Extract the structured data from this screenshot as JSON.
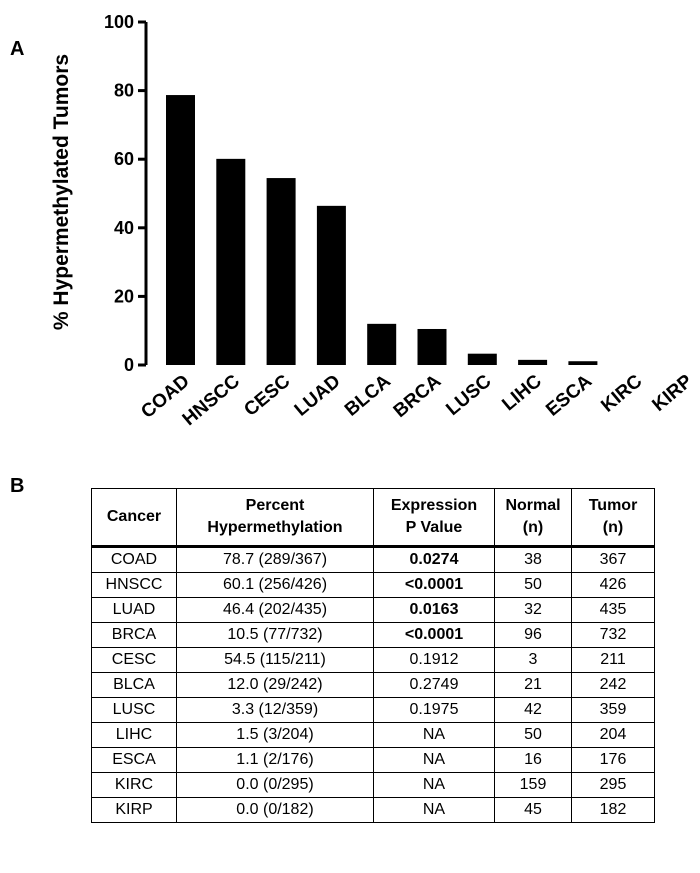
{
  "panel_a_label": "A",
  "panel_b_label": "B",
  "chart_data": {
    "type": "bar",
    "ylabel": "% Hypermethylated Tumors",
    "ylim": [
      0,
      100
    ],
    "yticks": [
      0,
      20,
      40,
      60,
      80,
      100
    ],
    "categories": [
      "COAD",
      "HNSCC",
      "CESC",
      "LUAD",
      "BLCA",
      "BRCA",
      "LUSC",
      "LIHC",
      "ESCA",
      "KIRC",
      "KIRP"
    ],
    "values": [
      78.7,
      60.1,
      54.5,
      46.4,
      12.0,
      10.5,
      3.3,
      1.5,
      1.1,
      0.0,
      0.0
    ],
    "bar_color": "#000000",
    "grid": false
  },
  "table": {
    "headers": [
      [
        "Cancer"
      ],
      [
        "Percent",
        "Hypermethylation"
      ],
      [
        "Expression",
        "P Value"
      ],
      [
        "Normal",
        "(n)"
      ],
      [
        "Tumor",
        "(n)"
      ]
    ],
    "rows": [
      {
        "cancer": "COAD",
        "percent": "78.7 (289/367)",
        "pvalue": "0.0274",
        "pvalue_bold": true,
        "normal": "38",
        "tumor": "367"
      },
      {
        "cancer": "HNSCC",
        "percent": "60.1 (256/426)",
        "pvalue": "<0.0001",
        "pvalue_bold": true,
        "normal": "50",
        "tumor": "426"
      },
      {
        "cancer": "LUAD",
        "percent": "46.4  (202/435)",
        "pvalue": "0.0163",
        "pvalue_bold": true,
        "normal": "32",
        "tumor": "435"
      },
      {
        "cancer": "BRCA",
        "percent": "10.5 (77/732)",
        "pvalue": "<0.0001",
        "pvalue_bold": true,
        "normal": "96",
        "tumor": "732"
      },
      {
        "cancer": "CESC",
        "percent": "54.5 (115/211)",
        "pvalue": "0.1912",
        "pvalue_bold": false,
        "normal": "3",
        "tumor": "211"
      },
      {
        "cancer": "BLCA",
        "percent": "12.0 (29/242)",
        "pvalue": "0.2749",
        "pvalue_bold": false,
        "normal": "21",
        "tumor": "242"
      },
      {
        "cancer": "LUSC",
        "percent": "3.3 (12/359)",
        "pvalue": "0.1975",
        "pvalue_bold": false,
        "normal": "42",
        "tumor": "359"
      },
      {
        "cancer": "LIHC",
        "percent": "1.5 (3/204)",
        "pvalue": "NA",
        "pvalue_bold": false,
        "normal": "50",
        "tumor": "204"
      },
      {
        "cancer": "ESCA",
        "percent": "1.1 (2/176)",
        "pvalue": "NA",
        "pvalue_bold": false,
        "normal": "16",
        "tumor": "176"
      },
      {
        "cancer": "KIRC",
        "percent": "0.0 (0/295)",
        "pvalue": "NA",
        "pvalue_bold": false,
        "normal": "159",
        "tumor": "295"
      },
      {
        "cancer": "KIRP",
        "percent": "0.0 (0/182)",
        "pvalue": "NA",
        "pvalue_bold": false,
        "normal": "45",
        "tumor": "182"
      }
    ]
  }
}
